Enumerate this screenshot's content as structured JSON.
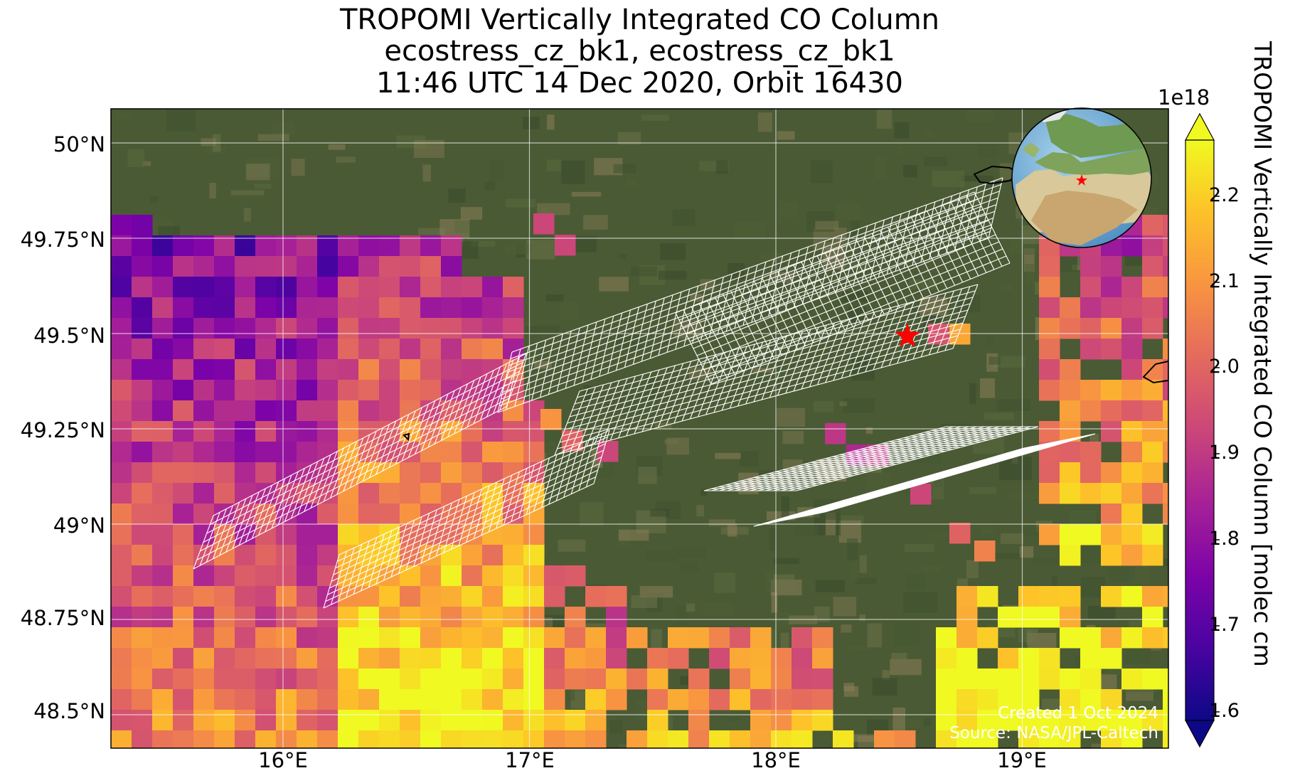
{
  "title": {
    "line1": "TROPOMI Vertically Integrated CO Column",
    "line2": "ecostress_cz_bk1, ecostress_cz_bk1",
    "line3": "11:46 UTC 14 Dec 2020, Orbit 16430"
  },
  "axes": {
    "lat_ticks": [
      "50°N",
      "49.75°N",
      "49.5°N",
      "49.25°N",
      "49°N",
      "48.75°N",
      "48.5°N"
    ],
    "lon_ticks": [
      "16°E",
      "17°E",
      "18°E",
      "19°E"
    ]
  },
  "colorbar": {
    "exponent": "1e18",
    "ticks": [
      "2.2",
      "2.1",
      "2.0",
      "1.9",
      "1.8",
      "1.7",
      "1.6"
    ],
    "label": "TROPOMI Vertically Integrated CO Column [molec cm",
    "min": 1.57,
    "max": 2.27,
    "colormap": "plasma",
    "extend": "both"
  },
  "credit": {
    "created": "Created 1 Oct 2024",
    "source": "Source: NASA/JPL-Caltech"
  },
  "target_marker": {
    "symbol": "red-star",
    "lon": 18.54,
    "lat": 49.5,
    "color": "#ff0000"
  },
  "inset_globe": {
    "description_icon": "globe-icon",
    "marker": "red-star"
  },
  "colors": {
    "grid": "#ffffff",
    "star": "#ff0000",
    "land": "#4a5a34"
  }
}
